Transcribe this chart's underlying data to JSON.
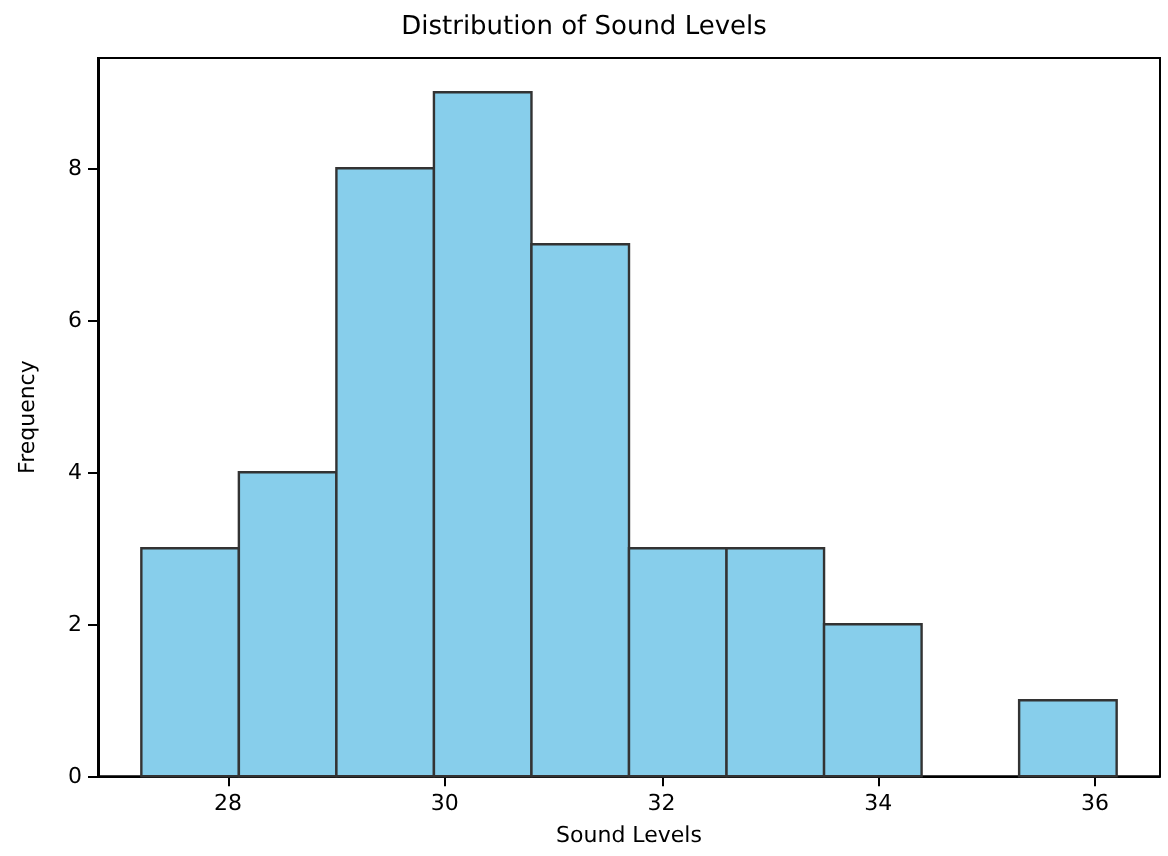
{
  "chart_data": {
    "type": "histogram",
    "title": "Distribution of Sound Levels",
    "xlabel": "Sound Levels",
    "ylabel": "Frequency",
    "bins": [
      27.2,
      28.1,
      29.0,
      29.9,
      30.8,
      31.7,
      32.6,
      33.5,
      34.4,
      35.3,
      36.2
    ],
    "values": [
      3,
      4,
      8,
      9,
      7,
      3,
      3,
      2,
      0,
      1
    ],
    "color": "#87ceeb",
    "xlim": [
      26.8,
      36.6
    ],
    "xticks": [
      28,
      30,
      32,
      34,
      36
    ],
    "ylim": [
      0,
      9.45
    ],
    "yticks": [
      0,
      2,
      4,
      6,
      8
    ],
    "grid": false
  }
}
